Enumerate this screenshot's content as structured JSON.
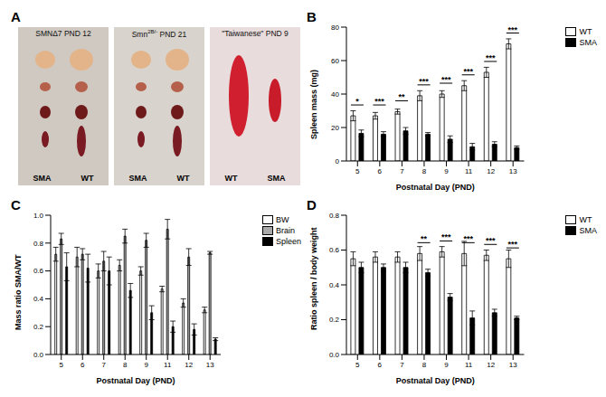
{
  "photo_panel": {
    "panel": "A",
    "photos": [
      {
        "caption": [
          {
            "text": "SMNΔ7 PND 12"
          }
        ],
        "labels": [
          "SMA",
          "WT"
        ]
      },
      {
        "caption": [
          {
            "text": "Smn"
          },
          {
            "text": "2B/-",
            "sup": true
          },
          {
            "text": " PND 21"
          }
        ],
        "labels": [
          "SMA",
          "WT"
        ]
      },
      {
        "caption": [
          {
            "text": "\"Taiwanese\" PND 9"
          }
        ],
        "labels": [
          "WT",
          "SMA"
        ]
      }
    ]
  },
  "chart_data": [
    {
      "panel": "B",
      "type": "bar",
      "x_label": "Postnatal Day (PND)",
      "y_label": "Spleen mass (mg)",
      "categories": [
        "5",
        "6",
        "7",
        "8",
        "9",
        "11",
        "12",
        "13"
      ],
      "series": [
        {
          "name": "WT",
          "color": "#ffffff",
          "values": [
            27,
            27,
            29.5,
            39,
            40,
            45,
            53,
            70
          ],
          "errors": [
            3,
            2,
            1.5,
            3,
            2,
            3,
            3,
            3
          ]
        },
        {
          "name": "SMA",
          "color": "#000000",
          "values": [
            16.5,
            16,
            18,
            16,
            13,
            8.5,
            10,
            8
          ],
          "errors": [
            2,
            1.5,
            2,
            1,
            2,
            2,
            1.5,
            1
          ]
        }
      ],
      "significance": [
        "*",
        "***",
        "**",
        "***",
        "***",
        "***",
        "***",
        "***"
      ],
      "ylim": [
        0,
        80
      ],
      "yticks": [
        0,
        20,
        40,
        60,
        80
      ],
      "legend": "right"
    },
    {
      "panel": "C",
      "type": "bar",
      "x_label": "Postnatal Day (PND)",
      "y_label": "Mass ratio SMA/WT",
      "categories": [
        "5",
        "6",
        "7",
        "8",
        "9",
        "11",
        "12",
        "13"
      ],
      "series": [
        {
          "name": "BW",
          "color": "#ffffff",
          "values": [
            0.72,
            0.7,
            0.6,
            0.64,
            0.6,
            0.47,
            0.37,
            0.32
          ],
          "errors": [
            0.05,
            0.07,
            0.05,
            0.04,
            0.03,
            0.02,
            0.03,
            0.02
          ]
        },
        {
          "name": "Brain",
          "color": "#aaaaaa",
          "values": [
            0.83,
            0.72,
            0.67,
            0.85,
            0.82,
            0.9,
            0.7,
            0.73
          ],
          "errors": [
            0.04,
            0.04,
            0.07,
            0.05,
            0.05,
            0.07,
            0.06,
            0.01
          ]
        },
        {
          "name": "Spleen",
          "color": "#000000",
          "values": [
            0.63,
            0.62,
            0.6,
            0.46,
            0.3,
            0.2,
            0.18,
            0.11
          ],
          "errors": [
            0.1,
            0.1,
            0.1,
            0.05,
            0.05,
            0.04,
            0.04,
            0.01
          ]
        }
      ],
      "ylim": [
        0,
        1
      ],
      "yticks": [
        {
          "value": 0,
          "label": "0.0"
        },
        0.2,
        0.4,
        0.6,
        0.8,
        {
          "value": 1,
          "label": "1.0"
        }
      ],
      "legend": "right"
    },
    {
      "panel": "D",
      "type": "bar",
      "x_label": "Postnatal Day (PND)",
      "y_label": "Ratio spleen / body weight",
      "categories": [
        "5",
        "6",
        "7",
        "8",
        "9",
        "11",
        "12",
        "13"
      ],
      "series": [
        {
          "name": "WT",
          "color": "#ffffff",
          "values": [
            0.55,
            0.56,
            0.56,
            0.58,
            0.59,
            0.58,
            0.57,
            0.55
          ],
          "errors": [
            0.04,
            0.03,
            0.03,
            0.04,
            0.03,
            0.07,
            0.03,
            0.05
          ]
        },
        {
          "name": "SMA",
          "color": "#000000",
          "values": [
            0.5,
            0.5,
            0.5,
            0.47,
            0.33,
            0.21,
            0.24,
            0.21
          ],
          "errors": [
            0.03,
            0.02,
            0.03,
            0.02,
            0.02,
            0.04,
            0.02,
            0.01
          ]
        }
      ],
      "significance": [
        null,
        null,
        null,
        "**",
        "***",
        "***",
        "***",
        "***"
      ],
      "ylim": [
        0,
        0.8
      ],
      "yticks": [
        {
          "value": 0,
          "label": "0.0"
        },
        0.2,
        0.4,
        0.6,
        {
          "value": 0.8,
          "label": "0.8"
        }
      ],
      "legend": "right"
    }
  ]
}
